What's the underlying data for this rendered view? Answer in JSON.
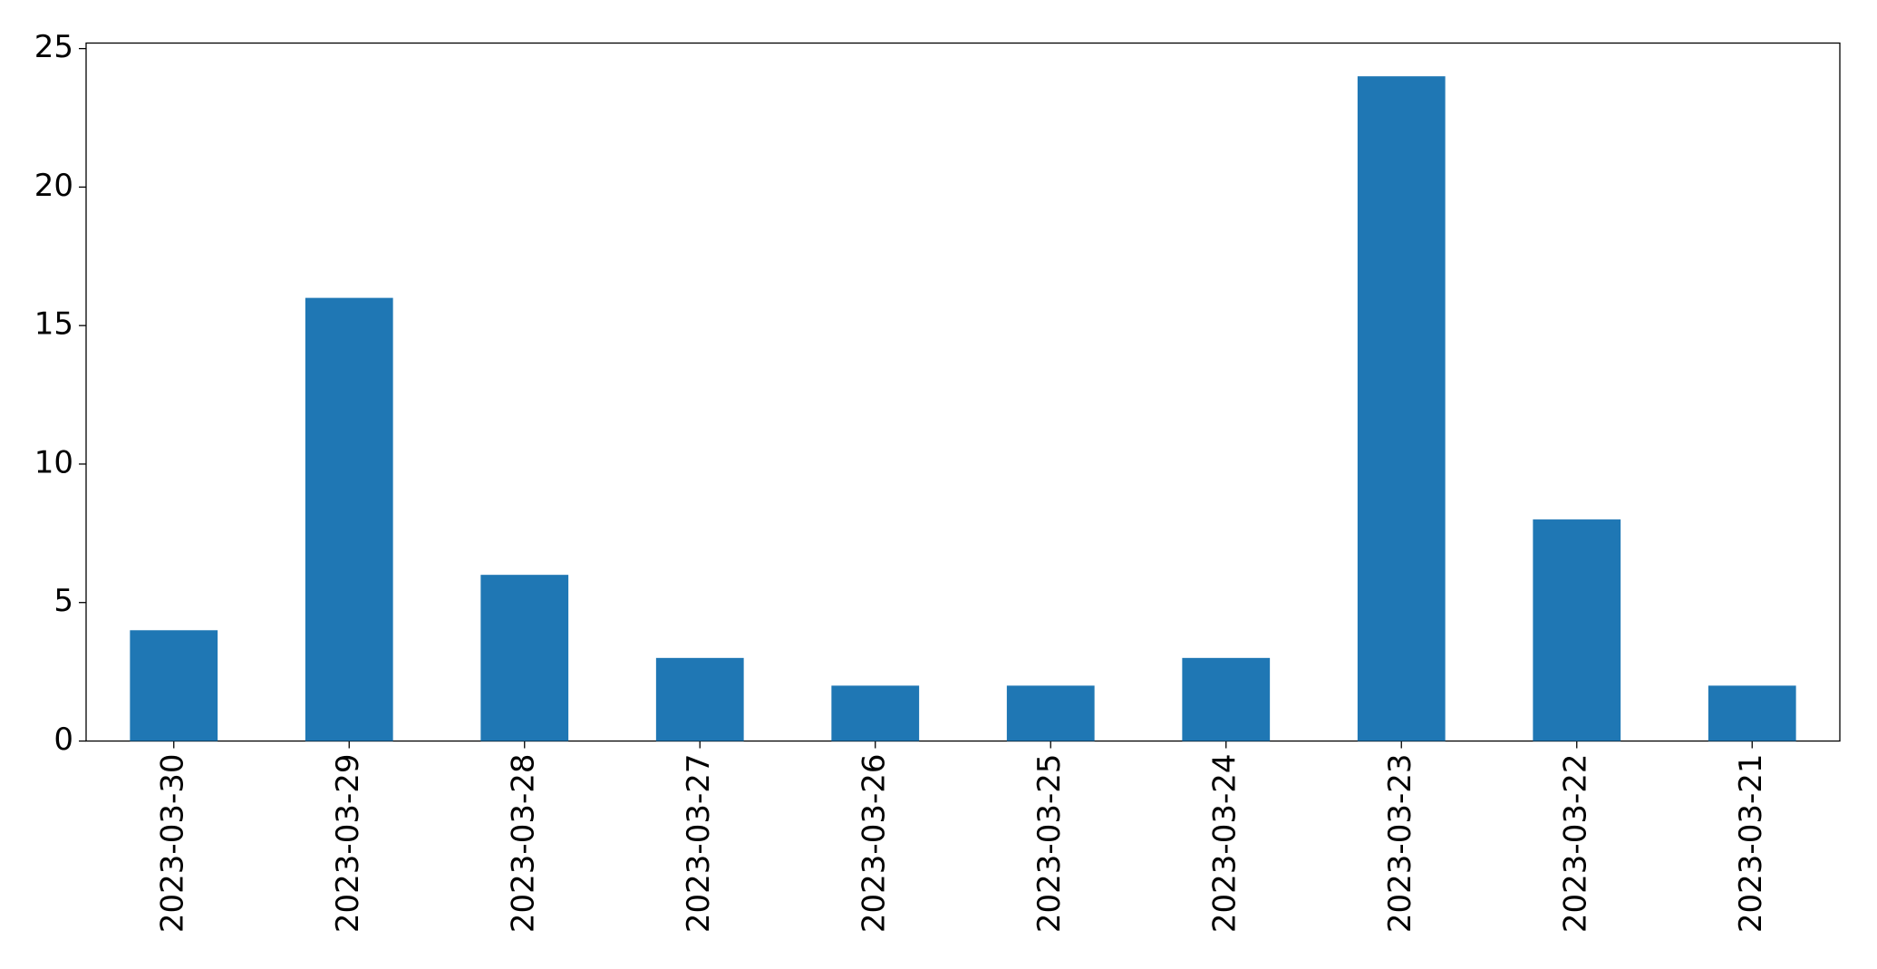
{
  "chart_data": {
    "type": "bar",
    "categories": [
      "2023-03-30",
      "2023-03-29",
      "2023-03-28",
      "2023-03-27",
      "2023-03-26",
      "2023-03-25",
      "2023-03-24",
      "2023-03-23",
      "2023-03-22",
      "2023-03-21"
    ],
    "values": [
      4,
      16,
      6,
      3,
      2,
      2,
      3,
      24,
      8,
      2
    ],
    "color": "#1f77b4",
    "ylim": [
      0,
      25.2
    ],
    "yticks": [
      0,
      5,
      10,
      15,
      20,
      25
    ],
    "grid": false
  }
}
